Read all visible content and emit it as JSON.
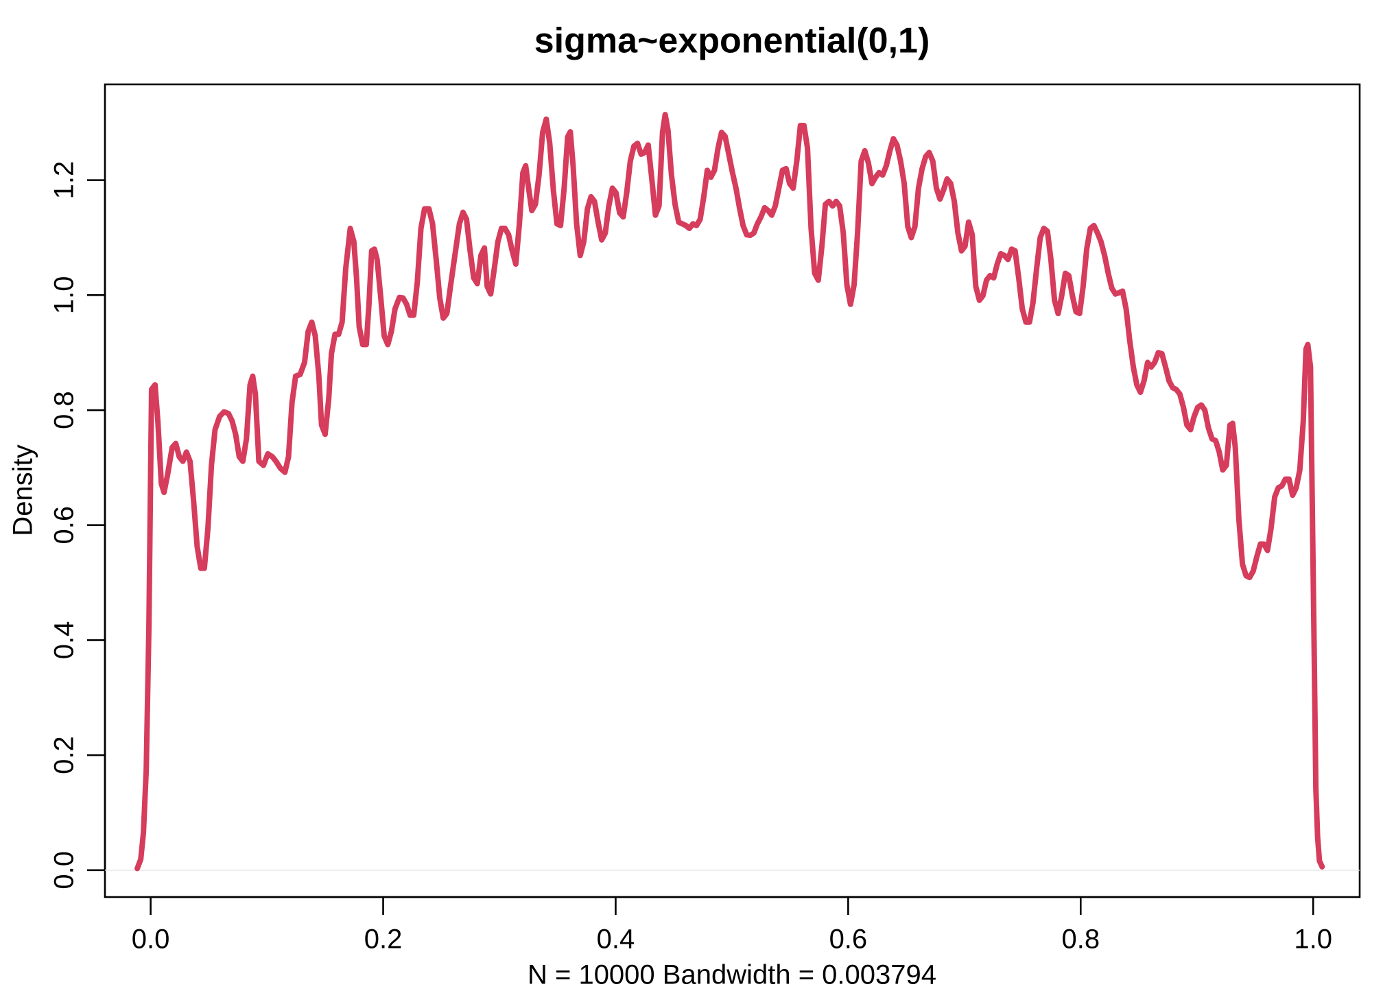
{
  "chart_data": {
    "type": "line",
    "title": "sigma~exponential(0,1)",
    "xlabel": "N = 10000   Bandwidth = 0.003794",
    "ylabel": "Density",
    "color": "#d63c5c",
    "xlim": [
      -0.0393,
      1.04
    ],
    "ylim": [
      -0.0467,
      1.3665
    ],
    "xticks": [
      {
        "value": 0,
        "label": "0.0"
      },
      0.2,
      0.4,
      0.6,
      0.8,
      {
        "value": 1,
        "label": "1.0"
      }
    ],
    "yticks": [
      {
        "value": 0,
        "label": "0.0"
      },
      0.2,
      0.4,
      0.6,
      0.8,
      {
        "value": 1,
        "label": "1.0"
      },
      1.2
    ],
    "x": [
      -0.0115,
      -0.0085,
      -0.0062,
      -0.0038,
      -0.0015,
      0.0008,
      0.0038,
      0.0062,
      0.0092,
      0.0115,
      0.0146,
      0.0185,
      0.0216,
      0.0246,
      0.0277,
      0.0308,
      0.0339,
      0.037,
      0.04,
      0.0431,
      0.0462,
      0.0493,
      0.0523,
      0.0554,
      0.0593,
      0.0631,
      0.067,
      0.0701,
      0.0731,
      0.0762,
      0.0793,
      0.0824,
      0.0855,
      0.0878,
      0.0901,
      0.0931,
      0.097,
      0.1008,
      0.1047,
      0.1078,
      0.1116,
      0.1155,
      0.1186,
      0.1216,
      0.1247,
      0.1286,
      0.1324,
      0.1355,
      0.1386,
      0.1416,
      0.1447,
      0.147,
      0.1501,
      0.1532,
      0.1555,
      0.1586,
      0.1617,
      0.1647,
      0.1678,
      0.1717,
      0.1748,
      0.1771,
      0.1794,
      0.1824,
      0.1855,
      0.1878,
      0.1901,
      0.1925,
      0.1948,
      0.1978,
      0.2009,
      0.204,
      0.2071,
      0.2102,
      0.214,
      0.2171,
      0.2202,
      0.2232,
      0.2263,
      0.2294,
      0.2325,
      0.2356,
      0.2394,
      0.2425,
      0.2456,
      0.2487,
      0.2517,
      0.2548,
      0.2579,
      0.2617,
      0.2656,
      0.2687,
      0.2717,
      0.2748,
      0.2779,
      0.281,
      0.2841,
      0.2871,
      0.2895,
      0.2925,
      0.2956,
      0.2987,
      0.3018,
      0.3048,
      0.3079,
      0.311,
      0.3141,
      0.3172,
      0.3202,
      0.3226,
      0.3249,
      0.3279,
      0.331,
      0.3341,
      0.3372,
      0.3403,
      0.3433,
      0.3464,
      0.3495,
      0.3526,
      0.3557,
      0.3587,
      0.361,
      0.3634,
      0.3664,
      0.3695,
      0.3726,
      0.3757,
      0.3788,
      0.3818,
      0.3849,
      0.388,
      0.3911,
      0.3941,
      0.3972,
      0.4003,
      0.4034,
      0.4065,
      0.4095,
      0.4126,
      0.4157,
      0.4188,
      0.4219,
      0.4249,
      0.428,
      0.4311,
      0.4342,
      0.4373,
      0.4403,
      0.4426,
      0.445,
      0.448,
      0.4511,
      0.4542,
      0.4573,
      0.4604,
      0.4634,
      0.4665,
      0.4696,
      0.4727,
      0.4758,
      0.4788,
      0.4819,
      0.485,
      0.4881,
      0.4911,
      0.4942,
      0.4973,
      0.5004,
      0.5035,
      0.5065,
      0.5096,
      0.5127,
      0.5158,
      0.5189,
      0.5219,
      0.525,
      0.5281,
      0.5312,
      0.5342,
      0.5373,
      0.5404,
      0.5435,
      0.5466,
      0.5496,
      0.5527,
      0.5558,
      0.5589,
      0.562,
      0.565,
      0.5681,
      0.5712,
      0.5743,
      0.5774,
      0.5804,
      0.5835,
      0.5866,
      0.5897,
      0.5927,
      0.5958,
      0.5989,
      0.602,
      0.6051,
      0.6081,
      0.6112,
      0.6143,
      0.6174,
      0.6205,
      0.6236,
      0.6266,
      0.6297,
      0.6328,
      0.6359,
      0.6389,
      0.642,
      0.6451,
      0.6482,
      0.6513,
      0.6543,
      0.6574,
      0.6605,
      0.6636,
      0.6667,
      0.6697,
      0.6728,
      0.6759,
      0.679,
      0.6821,
      0.6851,
      0.6882,
      0.6913,
      0.6944,
      0.6975,
      0.7005,
      0.7036,
      0.7067,
      0.7098,
      0.7129,
      0.7159,
      0.719,
      0.7221,
      0.7252,
      0.7282,
      0.7313,
      0.7344,
      0.7375,
      0.7406,
      0.7436,
      0.7467,
      0.7498,
      0.7529,
      0.756,
      0.759,
      0.7621,
      0.7652,
      0.7683,
      0.7714,
      0.7744,
      0.7775,
      0.7806,
      0.7837,
      0.7868,
      0.7898,
      0.7929,
      0.796,
      0.7991,
      0.8021,
      0.8052,
      0.8083,
      0.8114,
      0.8145,
      0.8175,
      0.8206,
      0.8237,
      0.8268,
      0.8299,
      0.8329,
      0.836,
      0.8391,
      0.8422,
      0.8453,
      0.8483,
      0.8514,
      0.8545,
      0.8576,
      0.8607,
      0.8637,
      0.8668,
      0.8699,
      0.873,
      0.876,
      0.8791,
      0.8822,
      0.8853,
      0.8884,
      0.8914,
      0.8945,
      0.8976,
      0.9007,
      0.9038,
      0.9068,
      0.9099,
      0.913,
      0.9161,
      0.9192,
      0.9222,
      0.9253,
      0.9284,
      0.9307,
      0.933,
      0.9361,
      0.9392,
      0.9423,
      0.9453,
      0.9484,
      0.9515,
      0.9546,
      0.9577,
      0.9607,
      0.9638,
      0.9669,
      0.97,
      0.973,
      0.9761,
      0.9792,
      0.9823,
      0.9854,
      0.9885,
      0.9915,
      0.9938,
      0.9954,
      0.9977,
      0.9992,
      1.0008,
      1.0023,
      1.0038,
      1.0054,
      1.0077
    ],
    "values": [
      0.003,
      0.019,
      0.065,
      0.174,
      0.423,
      0.836,
      0.844,
      0.781,
      0.672,
      0.657,
      0.688,
      0.735,
      0.742,
      0.719,
      0.711,
      0.727,
      0.711,
      0.641,
      0.563,
      0.525,
      0.525,
      0.595,
      0.704,
      0.766,
      0.789,
      0.797,
      0.794,
      0.781,
      0.758,
      0.719,
      0.711,
      0.75,
      0.844,
      0.859,
      0.828,
      0.711,
      0.704,
      0.724,
      0.719,
      0.711,
      0.699,
      0.692,
      0.719,
      0.813,
      0.859,
      0.862,
      0.883,
      0.937,
      0.953,
      0.929,
      0.859,
      0.774,
      0.758,
      0.82,
      0.898,
      0.932,
      0.932,
      0.953,
      1.046,
      1.116,
      1.093,
      1.03,
      0.945,
      0.914,
      0.914,
      0.984,
      1.077,
      1.08,
      1.062,
      0.999,
      0.929,
      0.914,
      0.937,
      0.976,
      0.996,
      0.995,
      0.984,
      0.965,
      0.965,
      1.023,
      1.116,
      1.15,
      1.15,
      1.124,
      1.062,
      0.995,
      0.96,
      0.968,
      1.015,
      1.069,
      1.124,
      1.144,
      1.132,
      1.077,
      1.03,
      1.02,
      1.069,
      1.082,
      1.015,
      1.002,
      1.046,
      1.093,
      1.116,
      1.116,
      1.105,
      1.077,
      1.054,
      1.124,
      1.213,
      1.225,
      1.189,
      1.147,
      1.158,
      1.209,
      1.283,
      1.306,
      1.264,
      1.183,
      1.124,
      1.121,
      1.186,
      1.275,
      1.284,
      1.225,
      1.124,
      1.069,
      1.093,
      1.15,
      1.171,
      1.163,
      1.127,
      1.096,
      1.108,
      1.155,
      1.186,
      1.178,
      1.143,
      1.136,
      1.178,
      1.233,
      1.259,
      1.264,
      1.245,
      1.248,
      1.261,
      1.202,
      1.139,
      1.155,
      1.283,
      1.314,
      1.287,
      1.209,
      1.158,
      1.127,
      1.124,
      1.121,
      1.116,
      1.124,
      1.121,
      1.132,
      1.171,
      1.217,
      1.205,
      1.217,
      1.256,
      1.283,
      1.276,
      1.245,
      1.214,
      1.186,
      1.152,
      1.121,
      1.105,
      1.104,
      1.108,
      1.124,
      1.136,
      1.152,
      1.147,
      1.139,
      1.155,
      1.186,
      1.217,
      1.22,
      1.194,
      1.186,
      1.233,
      1.295,
      1.295,
      1.256,
      1.116,
      1.038,
      1.026,
      1.085,
      1.158,
      1.163,
      1.155,
      1.163,
      1.155,
      1.108,
      1.018,
      0.984,
      1.018,
      1.108,
      1.233,
      1.251,
      1.23,
      1.194,
      1.205,
      1.213,
      1.209,
      1.225,
      1.251,
      1.272,
      1.261,
      1.233,
      1.194,
      1.119,
      1.1,
      1.119,
      1.186,
      1.22,
      1.241,
      1.248,
      1.233,
      1.186,
      1.167,
      1.183,
      1.202,
      1.194,
      1.163,
      1.108,
      1.077,
      1.085,
      1.127,
      1.105,
      1.015,
      0.991,
      0.999,
      1.026,
      1.034,
      1.03,
      1.054,
      1.072,
      1.069,
      1.062,
      1.08,
      1.077,
      1.03,
      0.976,
      0.953,
      0.953,
      0.987,
      1.046,
      1.1,
      1.116,
      1.111,
      1.062,
      0.991,
      0.968,
      0.999,
      1.038,
      1.034,
      0.999,
      0.971,
      0.968,
      1.015,
      1.08,
      1.116,
      1.121,
      1.108,
      1.093,
      1.069,
      1.038,
      1.012,
      1.002,
      1.004,
      1.007,
      0.976,
      0.921,
      0.875,
      0.844,
      0.831,
      0.851,
      0.883,
      0.875,
      0.883,
      0.9,
      0.898,
      0.875,
      0.851,
      0.839,
      0.836,
      0.828,
      0.805,
      0.774,
      0.766,
      0.789,
      0.805,
      0.809,
      0.8,
      0.769,
      0.75,
      0.747,
      0.727,
      0.696,
      0.704,
      0.774,
      0.777,
      0.735,
      0.61,
      0.532,
      0.512,
      0.509,
      0.52,
      0.545,
      0.567,
      0.567,
      0.556,
      0.595,
      0.649,
      0.665,
      0.668,
      0.68,
      0.68,
      0.652,
      0.665,
      0.696,
      0.781,
      0.906,
      0.914,
      0.875,
      0.641,
      0.392,
      0.143,
      0.058,
      0.016,
      0.006
    ]
  }
}
